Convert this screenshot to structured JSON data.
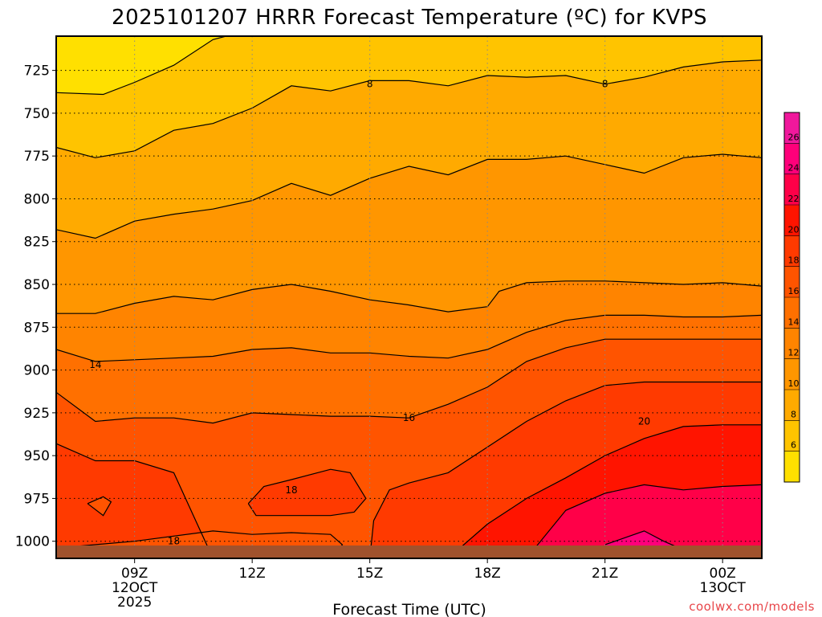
{
  "chart_data": {
    "type": "heatmap",
    "title": "2025101207 HRRR Forecast Temperature (ºC) for KVPS",
    "xlabel": "Forecast Time (UTC)",
    "ylabel": "",
    "x_ticks": [
      {
        "label": "09Z",
        "sub": [
          "12OCT",
          "2025"
        ]
      },
      {
        "label": "12Z",
        "sub": []
      },
      {
        "label": "15Z",
        "sub": []
      },
      {
        "label": "18Z",
        "sub": []
      },
      {
        "label": "21Z",
        "sub": []
      },
      {
        "label": "00Z",
        "sub": [
          "13OCT"
        ]
      }
    ],
    "x_range": [
      "07Z 12OCT",
      "01Z 13OCT"
    ],
    "y_axis": {
      "scale": "pressure (hPa)",
      "range": [
        1010,
        705
      ],
      "inverted": true
    },
    "y_ticks": [
      725,
      750,
      775,
      800,
      825,
      850,
      875,
      900,
      925,
      950,
      975,
      1000
    ],
    "grid": "dotted",
    "colorbar": {
      "placement": "right",
      "levels": [
        4,
        6,
        8,
        10,
        12,
        14,
        16,
        18,
        20,
        22,
        24,
        26,
        28
      ],
      "tick_labels": [
        6,
        8,
        10,
        12,
        14,
        16,
        18,
        20,
        22,
        24,
        26
      ],
      "colors": [
        "#ffe000",
        "#ffc400",
        "#ffaa00",
        "#ff9600",
        "#ff8400",
        "#ff7000",
        "#ff5400",
        "#ff3a00",
        "#ff1400",
        "#ff0048",
        "#ff007a",
        "#f0189c"
      ]
    },
    "contour_labels": [
      {
        "text": "8",
        "x": "15Z",
        "p": 733
      },
      {
        "text": "8",
        "x": "21Z",
        "p": 733
      },
      {
        "text": "14",
        "x": "08Z",
        "p": 897
      },
      {
        "text": "16",
        "x": "16Z",
        "p": 928
      },
      {
        "text": "20",
        "x": "22Z",
        "p": 930
      },
      {
        "text": "18",
        "x": "13Z",
        "p": 970
      },
      {
        "text": "18",
        "x": "10Z",
        "p": 1000
      }
    ],
    "ground_color": "#a0522d"
  },
  "credit": "coolwx.com/models"
}
